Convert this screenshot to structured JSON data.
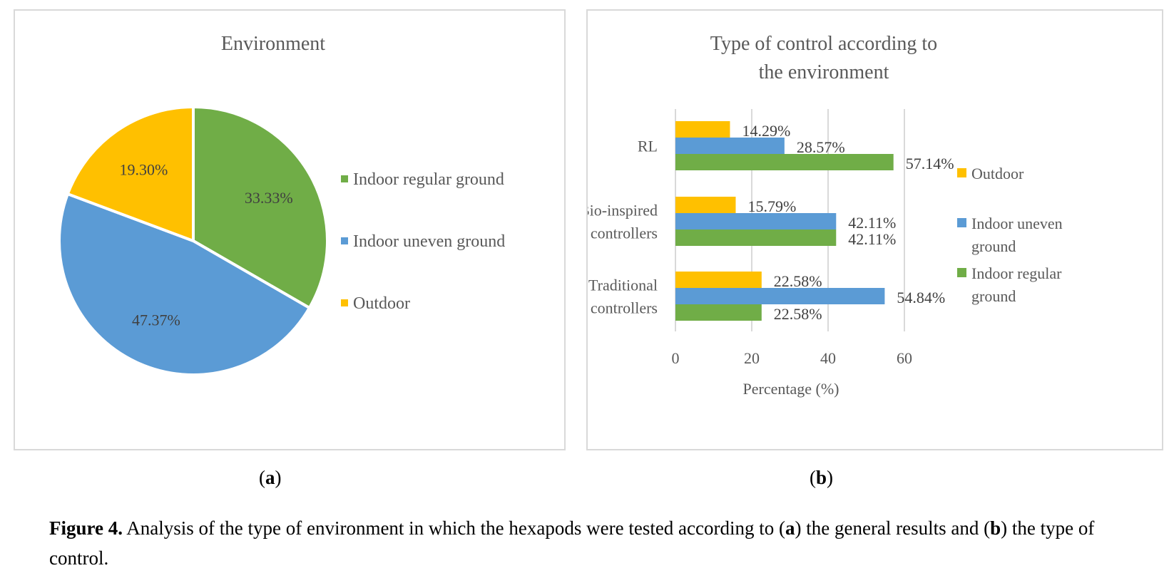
{
  "chart_data": [
    {
      "type": "pie",
      "title": "Environment",
      "slices": [
        {
          "label": "Indoor regular ground",
          "value": 33.33,
          "value_label": "33.33%",
          "color": "#70ad47"
        },
        {
          "label": "Indoor uneven ground",
          "value": 47.37,
          "value_label": "47.37%",
          "color": "#5b9bd5"
        },
        {
          "label": "Outdoor",
          "value": 19.3,
          "value_label": "19.30%",
          "color": "#ffc000"
        }
      ],
      "legend": [
        "Indoor regular ground",
        "Indoor uneven ground",
        "Outdoor"
      ],
      "legend_placement": "right"
    },
    {
      "type": "bar",
      "orientation": "horizontal",
      "title": "Type of control according to the environment",
      "categories": [
        "RL",
        "Bio-inspired controllers",
        "Traditional controllers"
      ],
      "category_lines": [
        [
          "RL"
        ],
        [
          "Bio-inspired",
          "controllers"
        ],
        [
          "Traditional",
          "controllers"
        ]
      ],
      "series": [
        {
          "name": "Outdoor",
          "color": "#ffc000",
          "values": [
            14.29,
            15.79,
            22.58
          ],
          "labels": [
            "14.29%",
            "15.79%",
            "22.58%"
          ]
        },
        {
          "name": "Indoor uneven ground",
          "color": "#5b9bd5",
          "values": [
            28.57,
            42.11,
            54.84
          ],
          "labels": [
            "28.57%",
            "42.11%",
            "54.84%"
          ]
        },
        {
          "name": "Indoor regular ground",
          "color": "#70ad47",
          "values": [
            57.14,
            42.11,
            22.58
          ],
          "labels": [
            "57.14%",
            "42.11%",
            "22.58%"
          ]
        }
      ],
      "legend_lines": [
        [
          "Outdoor"
        ],
        [
          "Indoor uneven",
          "ground"
        ],
        [
          "Indoor regular",
          "ground"
        ]
      ],
      "xlabel": "Percentage (%)",
      "xlim": [
        0,
        60
      ],
      "xticks": [
        "0",
        "20",
        "40",
        "60"
      ],
      "grid": true,
      "legend_placement": "right"
    }
  ],
  "sublabels": {
    "a_open": "(",
    "a": "a",
    "a_close": ")",
    "b_open": "(",
    "b": "b",
    "b_close": ")"
  },
  "caption": {
    "fig": "Figure 4.",
    "t1": " Analysis of the type of environment in which the hexapods were tested according to (",
    "a": "a",
    "t2": ") the general results and (",
    "b": "b",
    "t3": ") the type of control."
  }
}
